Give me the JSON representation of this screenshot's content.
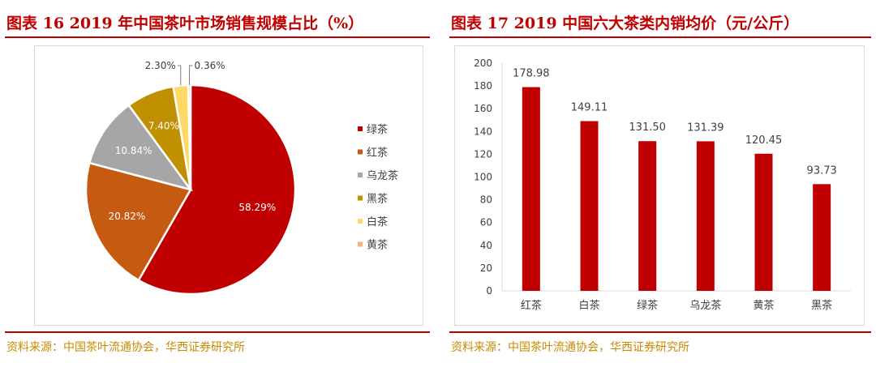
{
  "left": {
    "title": "图表 16   2019 年中国茶叶市场销售规模占比（%）",
    "source": "资料来源：中国茶叶流通协会，华西证券研究所"
  },
  "right": {
    "title": "图表 17   2019 中国六大茶类内销均价（元/公斤）",
    "source": "资料来源：中国茶叶流通协会，华西证券研究所"
  },
  "chart_data": [
    {
      "type": "pie",
      "categories": [
        "绿茶",
        "红茶",
        "乌龙茶",
        "黑茶",
        "白茶",
        "黄茶"
      ],
      "values": [
        58.29,
        20.82,
        10.84,
        7.4,
        2.3,
        0.36
      ],
      "labels": [
        "58.29%",
        "20.82%",
        "10.84%",
        "7.40%",
        "2.30%",
        "0.36%"
      ],
      "colors": [
        "#c00000",
        "#c55a11",
        "#a6a6a6",
        "#bf9000",
        "#ffd966",
        "#f4b183"
      ],
      "legend": "right"
    },
    {
      "type": "bar",
      "categories": [
        "红茶",
        "白茶",
        "绿茶",
        "乌龙茶",
        "黄茶",
        "黑茶"
      ],
      "values": [
        178.98,
        149.11,
        131.5,
        131.39,
        120.45,
        93.73
      ],
      "labels": [
        "178.98",
        "149.11",
        "131.50",
        "131.39",
        "120.45",
        "93.73"
      ],
      "ylim": [
        0,
        200
      ],
      "yticks": [
        0,
        20,
        40,
        60,
        80,
        100,
        120,
        140,
        160,
        180,
        200
      ],
      "color": "#c00000",
      "grid": false
    }
  ]
}
